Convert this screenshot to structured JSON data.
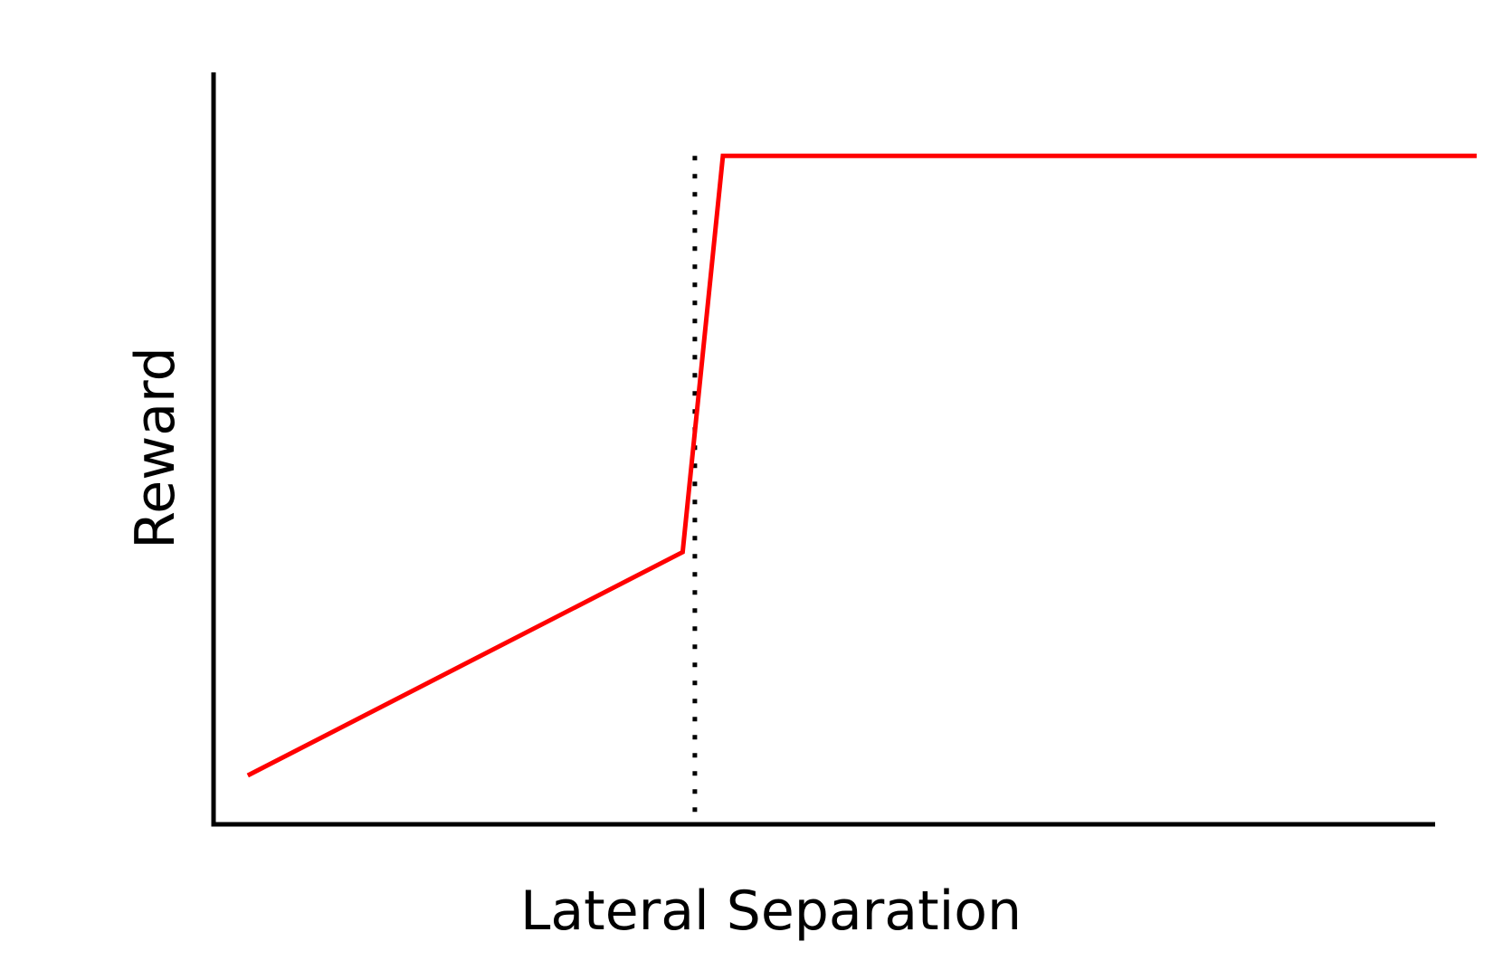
{
  "chart_data": {
    "type": "line",
    "title": "",
    "xlabel": "Lateral Separation",
    "ylabel": "Reward",
    "grid": false,
    "legend": "none",
    "xlim": [
      0,
      10
    ],
    "ylim": [
      0,
      10
    ],
    "series": [
      {
        "color": "#ff0000",
        "x": [
          0.28,
          3.84,
          4.17,
          10.34
        ],
        "y": [
          0.65,
          3.62,
          8.89,
          8.89
        ]
      }
    ],
    "reference_lines": [
      {
        "orientation": "vertical",
        "x": 3.94,
        "y_from": 0,
        "y_to": 8.89,
        "style": "dotted",
        "color": "#000000"
      }
    ],
    "colors": {
      "axis": "#000000",
      "series": "#ff0000",
      "reference": "#000000"
    }
  }
}
